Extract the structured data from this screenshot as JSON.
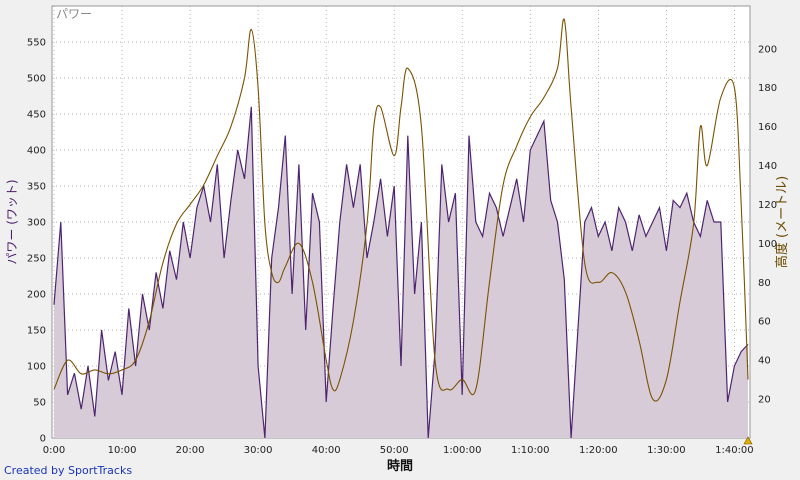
{
  "credit": "Created by SportTracks",
  "chart_data": {
    "type": "line",
    "title": "",
    "legend_tag": "パワー",
    "xlabel": "時間",
    "ylabel_left": "パワー (ワット)",
    "ylabel_right": "高度 (メートル)",
    "x_tick_labels": [
      "0:00",
      "10:00",
      "20:00",
      "30:00",
      "40:00",
      "50:00",
      "1:00:00",
      "1:10:00",
      "1:20:00",
      "1:30:00",
      "1:40:00"
    ],
    "y_left_ticks": [
      0,
      50,
      100,
      150,
      200,
      250,
      300,
      350,
      400,
      450,
      500,
      550
    ],
    "y_right_ticks": [
      20,
      40,
      60,
      80,
      100,
      120,
      140,
      160,
      180,
      200
    ],
    "xlim_minutes": [
      0,
      102
    ],
    "ylim_left": [
      0,
      600
    ],
    "ylim_right": [
      0,
      222
    ],
    "grid": true,
    "colors": {
      "power_line": "#4e2470",
      "power_fill": "#d8cbd8",
      "altitude_line": "#7a5200",
      "background": "#ffffff"
    },
    "series": [
      {
        "name": "パワー",
        "axis": "left",
        "x_minutes": [
          0,
          1,
          2,
          3,
          4,
          5,
          6,
          7,
          8,
          9,
          10,
          11,
          12,
          13,
          14,
          15,
          16,
          17,
          18,
          19,
          20,
          21,
          22,
          23,
          24,
          25,
          26,
          27,
          28,
          29,
          30,
          31,
          32,
          33,
          34,
          35,
          36,
          37,
          38,
          39,
          40,
          41,
          42,
          43,
          44,
          45,
          46,
          47,
          48,
          49,
          50,
          51,
          52,
          53,
          54,
          55,
          56,
          57,
          58,
          59,
          60,
          61,
          62,
          63,
          64,
          65,
          66,
          67,
          68,
          69,
          70,
          71,
          72,
          73,
          74,
          75,
          76,
          77,
          78,
          79,
          80,
          81,
          82,
          83,
          84,
          85,
          86,
          87,
          88,
          89,
          90,
          91,
          92,
          93,
          94,
          95,
          96,
          97,
          98,
          99,
          100,
          101,
          102
        ],
        "values": [
          185,
          300,
          60,
          90,
          40,
          100,
          30,
          150,
          80,
          120,
          60,
          180,
          100,
          200,
          150,
          230,
          180,
          260,
          220,
          300,
          250,
          320,
          350,
          300,
          380,
          250,
          330,
          400,
          360,
          460,
          100,
          0,
          250,
          320,
          420,
          200,
          380,
          150,
          340,
          300,
          50,
          180,
          300,
          380,
          320,
          380,
          250,
          300,
          360,
          280,
          350,
          100,
          420,
          200,
          300,
          0,
          120,
          380,
          300,
          340,
          60,
          420,
          300,
          280,
          340,
          320,
          280,
          320,
          360,
          300,
          400,
          420,
          440,
          330,
          300,
          220,
          0,
          150,
          300,
          320,
          280,
          300,
          260,
          320,
          300,
          260,
          310,
          280,
          300,
          320,
          260,
          330,
          320,
          340,
          300,
          280,
          330,
          300,
          300,
          50,
          100,
          120,
          130
        ]
      },
      {
        "name": "高度",
        "axis": "right",
        "x_minutes": [
          0,
          2,
          4,
          6,
          8,
          10,
          12,
          14,
          16,
          18,
          20,
          22,
          24,
          26,
          28,
          29,
          30,
          31,
          32,
          33,
          34,
          36,
          38,
          40,
          41,
          42,
          44,
          46,
          47,
          48,
          50,
          51,
          52,
          54,
          56,
          58,
          60,
          62,
          64,
          66,
          68,
          70,
          72,
          74,
          75,
          76,
          78,
          80,
          82,
          84,
          86,
          88,
          90,
          92,
          94,
          95,
          96,
          98,
          100,
          101,
          102
        ],
        "values": [
          25,
          40,
          33,
          35,
          33,
          35,
          40,
          60,
          90,
          110,
          120,
          130,
          145,
          160,
          185,
          210,
          180,
          110,
          85,
          80,
          88,
          100,
          80,
          40,
          25,
          30,
          60,
          110,
          160,
          170,
          145,
          170,
          190,
          160,
          40,
          25,
          30,
          25,
          80,
          130,
          150,
          165,
          175,
          190,
          215,
          170,
          90,
          80,
          85,
          75,
          50,
          20,
          30,
          70,
          110,
          160,
          140,
          175,
          180,
          120,
          30
        ]
      }
    ]
  }
}
